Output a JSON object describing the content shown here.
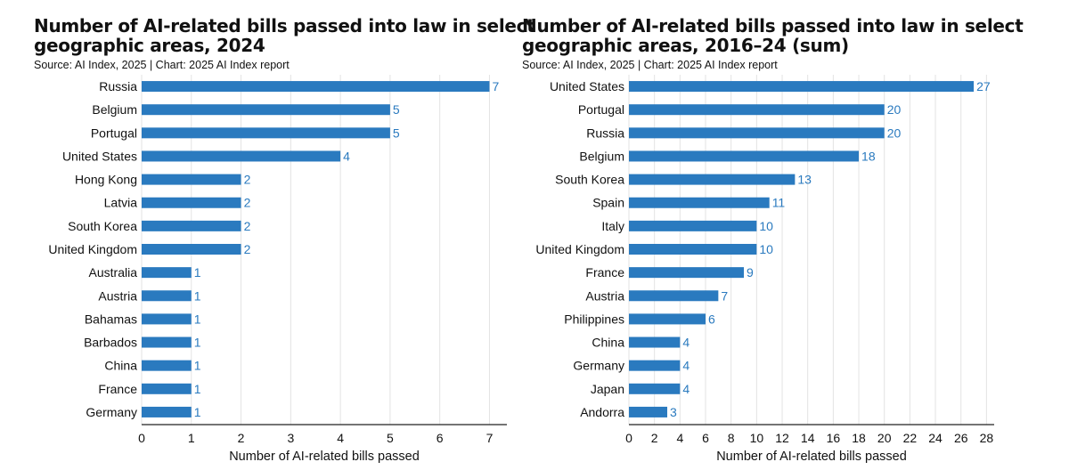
{
  "chart_data": [
    {
      "type": "bar",
      "orientation": "horizontal",
      "title": "Number of AI-related bills passed into law in select geographic areas, 2024",
      "source": "Source: AI Index, 2025 | Chart: 2025 AI Index report",
      "xlabel": "Number of AI-related bills passed",
      "categories": [
        "Russia",
        "Belgium",
        "Portugal",
        "United States",
        "Hong Kong",
        "Latvia",
        "South Korea",
        "United Kingdom",
        "Australia",
        "Austria",
        "Bahamas",
        "Barbados",
        "China",
        "France",
        "Germany"
      ],
      "values": [
        7,
        5,
        5,
        4,
        2,
        2,
        2,
        2,
        1,
        1,
        1,
        1,
        1,
        1,
        1
      ],
      "xlim": [
        0,
        7.35
      ],
      "xticks": [
        0,
        1,
        2,
        3,
        4,
        5,
        6,
        7
      ],
      "color": "#2a7abf"
    },
    {
      "type": "bar",
      "orientation": "horizontal",
      "title": "Number of AI-related bills passed into law in select geographic areas, 2016–24 (sum)",
      "source": "Source: AI Index, 2025 | Chart: 2025 AI Index report",
      "xlabel": "Number of AI-related bills passed",
      "categories": [
        "United States",
        "Portugal",
        "Russia",
        "Belgium",
        "South Korea",
        "Spain",
        "Italy",
        "United Kingdom",
        "France",
        "Austria",
        "Philippines",
        "China",
        "Germany",
        "Japan",
        "Andorra"
      ],
      "values": [
        27,
        20,
        20,
        18,
        13,
        11,
        10,
        10,
        9,
        7,
        6,
        4,
        4,
        4,
        3
      ],
      "xlim": [
        0,
        28.6
      ],
      "xticks": [
        0,
        2,
        4,
        6,
        8,
        10,
        12,
        14,
        16,
        18,
        20,
        22,
        24,
        26,
        28
      ],
      "color": "#2a7abf"
    }
  ]
}
